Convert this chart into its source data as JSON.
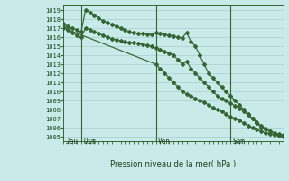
{
  "xlabel": "Pression niveau de la mer( hPa )",
  "bg_color": "#c8eae8",
  "grid_color": "#a8cece",
  "line_color": "#336633",
  "ylim": [
    1004.5,
    1019.5
  ],
  "xlim": [
    0,
    100
  ],
  "ytick_vals": [
    1005,
    1006,
    1007,
    1008,
    1009,
    1010,
    1011,
    1012,
    1013,
    1014,
    1015,
    1016,
    1017,
    1018,
    1019
  ],
  "day_vlines_x": [
    8,
    42,
    76
  ],
  "day_labels": [
    [
      "Jeu",
      1
    ],
    [
      "Dim",
      9
    ],
    [
      "Ven",
      43
    ],
    [
      "Sam",
      77
    ]
  ],
  "line1_x": [
    0,
    2,
    4,
    6,
    8,
    10,
    12,
    14,
    16,
    18,
    20,
    22,
    24,
    26,
    28,
    30,
    32,
    34,
    36,
    38,
    40,
    42,
    44,
    46,
    48,
    50,
    52,
    54,
    56,
    58,
    60,
    62,
    64,
    66,
    68,
    70,
    72,
    74,
    76,
    78,
    80,
    82,
    84,
    86,
    88,
    90,
    92,
    94,
    96,
    98,
    100
  ],
  "line1_y": [
    1017.5,
    1017.2,
    1017.0,
    1016.8,
    1016.6,
    1019.0,
    1018.7,
    1018.4,
    1018.1,
    1017.8,
    1017.6,
    1017.4,
    1017.2,
    1017.0,
    1016.8,
    1016.6,
    1016.5,
    1016.4,
    1016.4,
    1016.3,
    1016.3,
    1016.5,
    1016.4,
    1016.3,
    1016.2,
    1016.1,
    1016.0,
    1015.9,
    1016.5,
    1015.5,
    1015.0,
    1014.0,
    1013.0,
    1012.0,
    1011.5,
    1011.0,
    1010.5,
    1010.0,
    1009.5,
    1009.0,
    1008.5,
    1008.0,
    1007.5,
    1007.0,
    1006.5,
    1006.0,
    1005.8,
    1005.6,
    1005.4,
    1005.3,
    1005.2
  ],
  "line2_x": [
    0,
    2,
    4,
    6,
    8,
    10,
    12,
    14,
    16,
    18,
    20,
    22,
    24,
    26,
    28,
    30,
    32,
    34,
    36,
    38,
    40,
    42,
    44,
    46,
    48,
    50,
    52,
    54,
    56,
    58,
    60,
    62,
    64,
    66,
    68,
    70,
    72,
    74,
    76,
    78,
    80,
    82,
    84,
    86,
    88,
    90,
    92,
    94,
    96,
    98,
    100
  ],
  "line2_y": [
    1017.2,
    1016.8,
    1016.5,
    1016.2,
    1016.0,
    1017.0,
    1016.8,
    1016.6,
    1016.4,
    1016.2,
    1016.0,
    1015.8,
    1015.7,
    1015.6,
    1015.5,
    1015.4,
    1015.4,
    1015.3,
    1015.2,
    1015.1,
    1015.0,
    1014.8,
    1014.6,
    1014.4,
    1014.2,
    1014.0,
    1013.5,
    1013.0,
    1013.3,
    1012.5,
    1012.0,
    1011.5,
    1011.0,
    1010.5,
    1010.0,
    1009.5,
    1009.2,
    1009.0,
    1008.7,
    1008.4,
    1008.1,
    1007.8,
    1007.4,
    1007.0,
    1006.6,
    1006.2,
    1005.9,
    1005.6,
    1005.4,
    1005.2,
    1005.0
  ],
  "line3_x": [
    0,
    42,
    44,
    46,
    48,
    50,
    52,
    54,
    56,
    58,
    60,
    62,
    64,
    66,
    68,
    70,
    72,
    74,
    76,
    78,
    80,
    82,
    84,
    86,
    88,
    90,
    92,
    94,
    96,
    98,
    100
  ],
  "line3_y": [
    1017.0,
    1013.0,
    1012.5,
    1012.0,
    1011.5,
    1011.0,
    1010.5,
    1010.0,
    1009.7,
    1009.5,
    1009.2,
    1009.0,
    1008.8,
    1008.5,
    1008.2,
    1008.0,
    1007.8,
    1007.5,
    1007.2,
    1007.0,
    1006.8,
    1006.5,
    1006.2,
    1006.0,
    1005.8,
    1005.6,
    1005.4,
    1005.3,
    1005.2,
    1005.1,
    1005.0
  ]
}
